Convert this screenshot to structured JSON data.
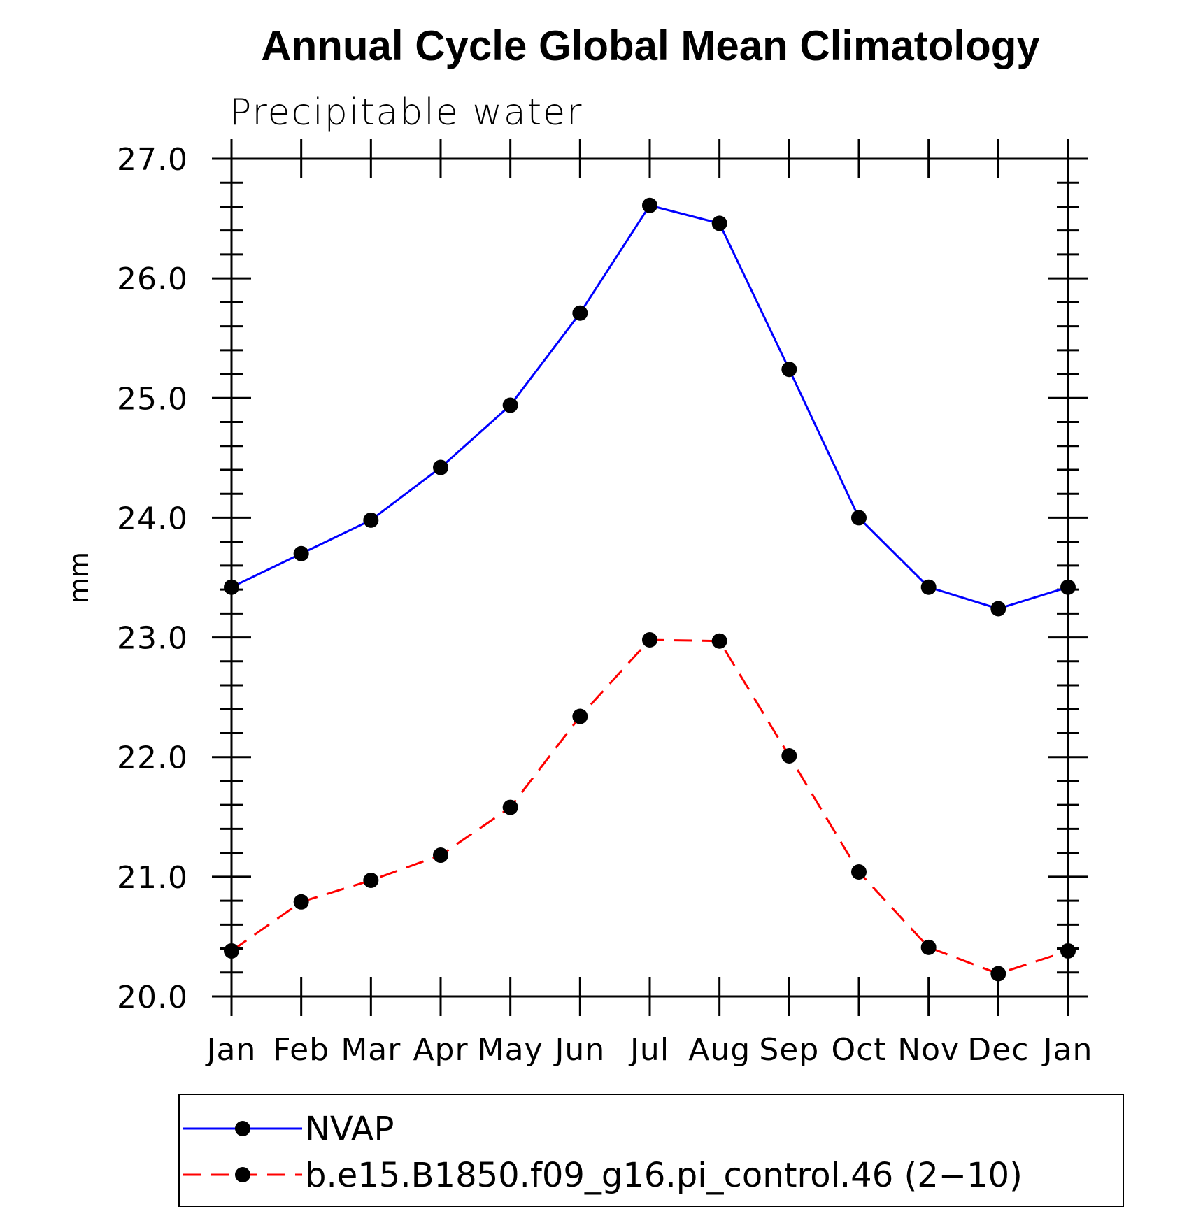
{
  "chart_data": {
    "type": "line",
    "title": "Annual Cycle Global Mean Climatology",
    "subtitle": "Precipitable water",
    "xlabel": "",
    "ylabel": "mm",
    "categories": [
      "Jan",
      "Feb",
      "Mar",
      "Apr",
      "May",
      "Jun",
      "Jul",
      "Aug",
      "Sep",
      "Oct",
      "Nov",
      "Dec",
      "Jan"
    ],
    "ylim": [
      20.0,
      27.0
    ],
    "yticks": [
      "20.0",
      "21.0",
      "22.0",
      "23.0",
      "24.0",
      "25.0",
      "26.0",
      "27.0"
    ],
    "grid": false,
    "legend_position": "bottom",
    "series": [
      {
        "name": "NVAP",
        "color": "#0000ff",
        "dash": "solid",
        "marker": "filled-circle",
        "values": [
          23.42,
          23.7,
          23.98,
          24.42,
          24.94,
          25.71,
          26.61,
          26.46,
          25.24,
          24.0,
          23.42,
          23.24,
          23.42
        ]
      },
      {
        "name": "b.e15.B1850.f09_g16.pi_control.46 (2−10)",
        "color": "#ff0000",
        "dash": "dashed",
        "marker": "filled-circle",
        "values": [
          20.38,
          20.79,
          20.97,
          21.18,
          21.58,
          22.34,
          22.98,
          22.97,
          22.01,
          21.04,
          20.41,
          20.19,
          20.38
        ]
      }
    ]
  }
}
